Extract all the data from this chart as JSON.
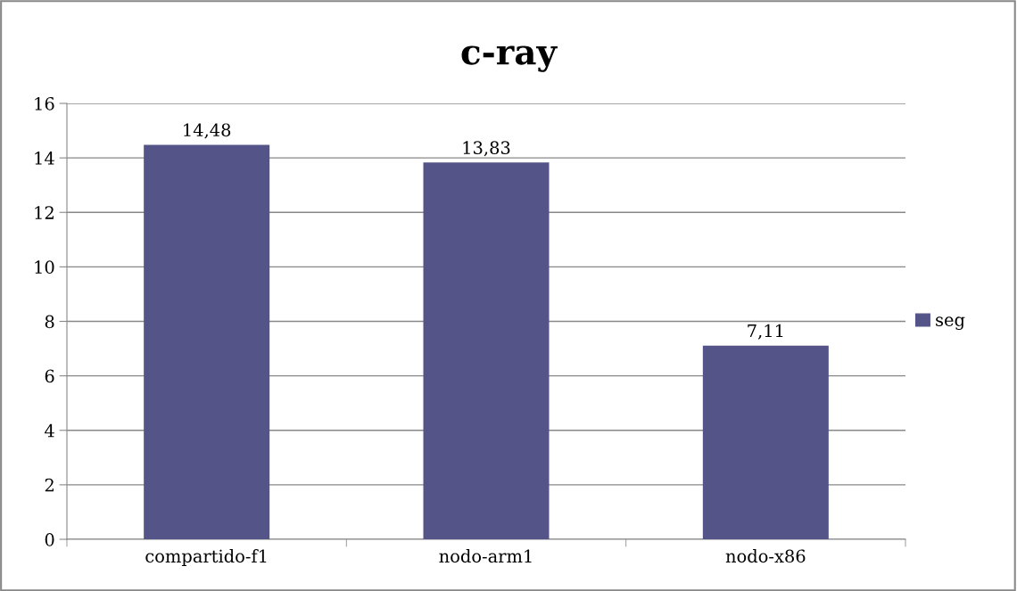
{
  "chart_data": {
    "type": "bar",
    "title": "c-ray",
    "categories": [
      "compartido-f1",
      "nodo-arm1",
      "nodo-x86"
    ],
    "series": [
      {
        "name": "seg",
        "color": "#545488",
        "values": [
          14.48,
          13.83,
          7.11
        ],
        "value_labels": [
          "14,48",
          "13,83",
          "7,11"
        ]
      }
    ],
    "ylim": [
      0,
      16
    ],
    "yticks": [
      0,
      2,
      4,
      6,
      8,
      10,
      12,
      14,
      16
    ],
    "grid": "y",
    "legend": "right"
  }
}
